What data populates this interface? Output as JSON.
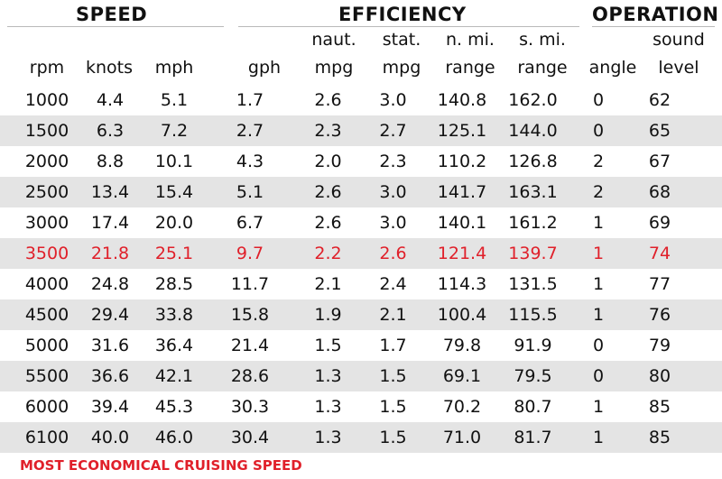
{
  "groups": {
    "speed": "SPEED",
    "efficiency": "EFFICIENCY",
    "operation": "OPERATION"
  },
  "columns": [
    {
      "top": "",
      "bottom": "rpm"
    },
    {
      "top": "",
      "bottom": "knots"
    },
    {
      "top": "",
      "bottom": "mph"
    },
    {
      "top": "",
      "bottom": "gph"
    },
    {
      "top": "naut.",
      "bottom": "mpg"
    },
    {
      "top": "stat.",
      "bottom": "mpg"
    },
    {
      "top": "n. mi.",
      "bottom": "range"
    },
    {
      "top": "s. mi.",
      "bottom": "range"
    },
    {
      "top": "",
      "bottom": "angle"
    },
    {
      "top": "sound",
      "bottom": "level"
    }
  ],
  "rows": [
    [
      "1000",
      "4.4",
      "5.1",
      "1.7",
      "2.6",
      "3.0",
      "140.8",
      "162.0",
      "0",
      "62"
    ],
    [
      "1500",
      "6.3",
      "7.2",
      "2.7",
      "2.3",
      "2.7",
      "125.1",
      "144.0",
      "0",
      "65"
    ],
    [
      "2000",
      "8.8",
      "10.1",
      "4.3",
      "2.0",
      "2.3",
      "110.2",
      "126.8",
      "2",
      "67"
    ],
    [
      "2500",
      "13.4",
      "15.4",
      "5.1",
      "2.6",
      "3.0",
      "141.7",
      "163.1",
      "2",
      "68"
    ],
    [
      "3000",
      "17.4",
      "20.0",
      "6.7",
      "2.6",
      "3.0",
      "140.1",
      "161.2",
      "1",
      "69"
    ],
    [
      "3500",
      "21.8",
      "25.1",
      "9.7",
      "2.2",
      "2.6",
      "121.4",
      "139.7",
      "1",
      "74"
    ],
    [
      "4000",
      "24.8",
      "28.5",
      "11.7",
      "2.1",
      "2.4",
      "114.3",
      "131.5",
      "1",
      "77"
    ],
    [
      "4500",
      "29.4",
      "33.8",
      "15.8",
      "1.9",
      "2.1",
      "100.4",
      "115.5",
      "1",
      "76"
    ],
    [
      "5000",
      "31.6",
      "36.4",
      "21.4",
      "1.5",
      "1.7",
      "79.8",
      "91.9",
      "0",
      "79"
    ],
    [
      "5500",
      "36.6",
      "42.1",
      "28.6",
      "1.3",
      "1.5",
      "69.1",
      "79.5",
      "0",
      "80"
    ],
    [
      "6000",
      "39.4",
      "45.3",
      "30.3",
      "1.3",
      "1.5",
      "70.2",
      "80.7",
      "1",
      "85"
    ],
    [
      "6100",
      "40.0",
      "46.0",
      "30.4",
      "1.3",
      "1.5",
      "71.0",
      "81.7",
      "1",
      "85"
    ]
  ],
  "highlight_row": 5,
  "highlight_color": "#e0202a",
  "stripe_color": "#e4e4e4",
  "footnote": "MOST ECONOMICAL CRUISING SPEED"
}
